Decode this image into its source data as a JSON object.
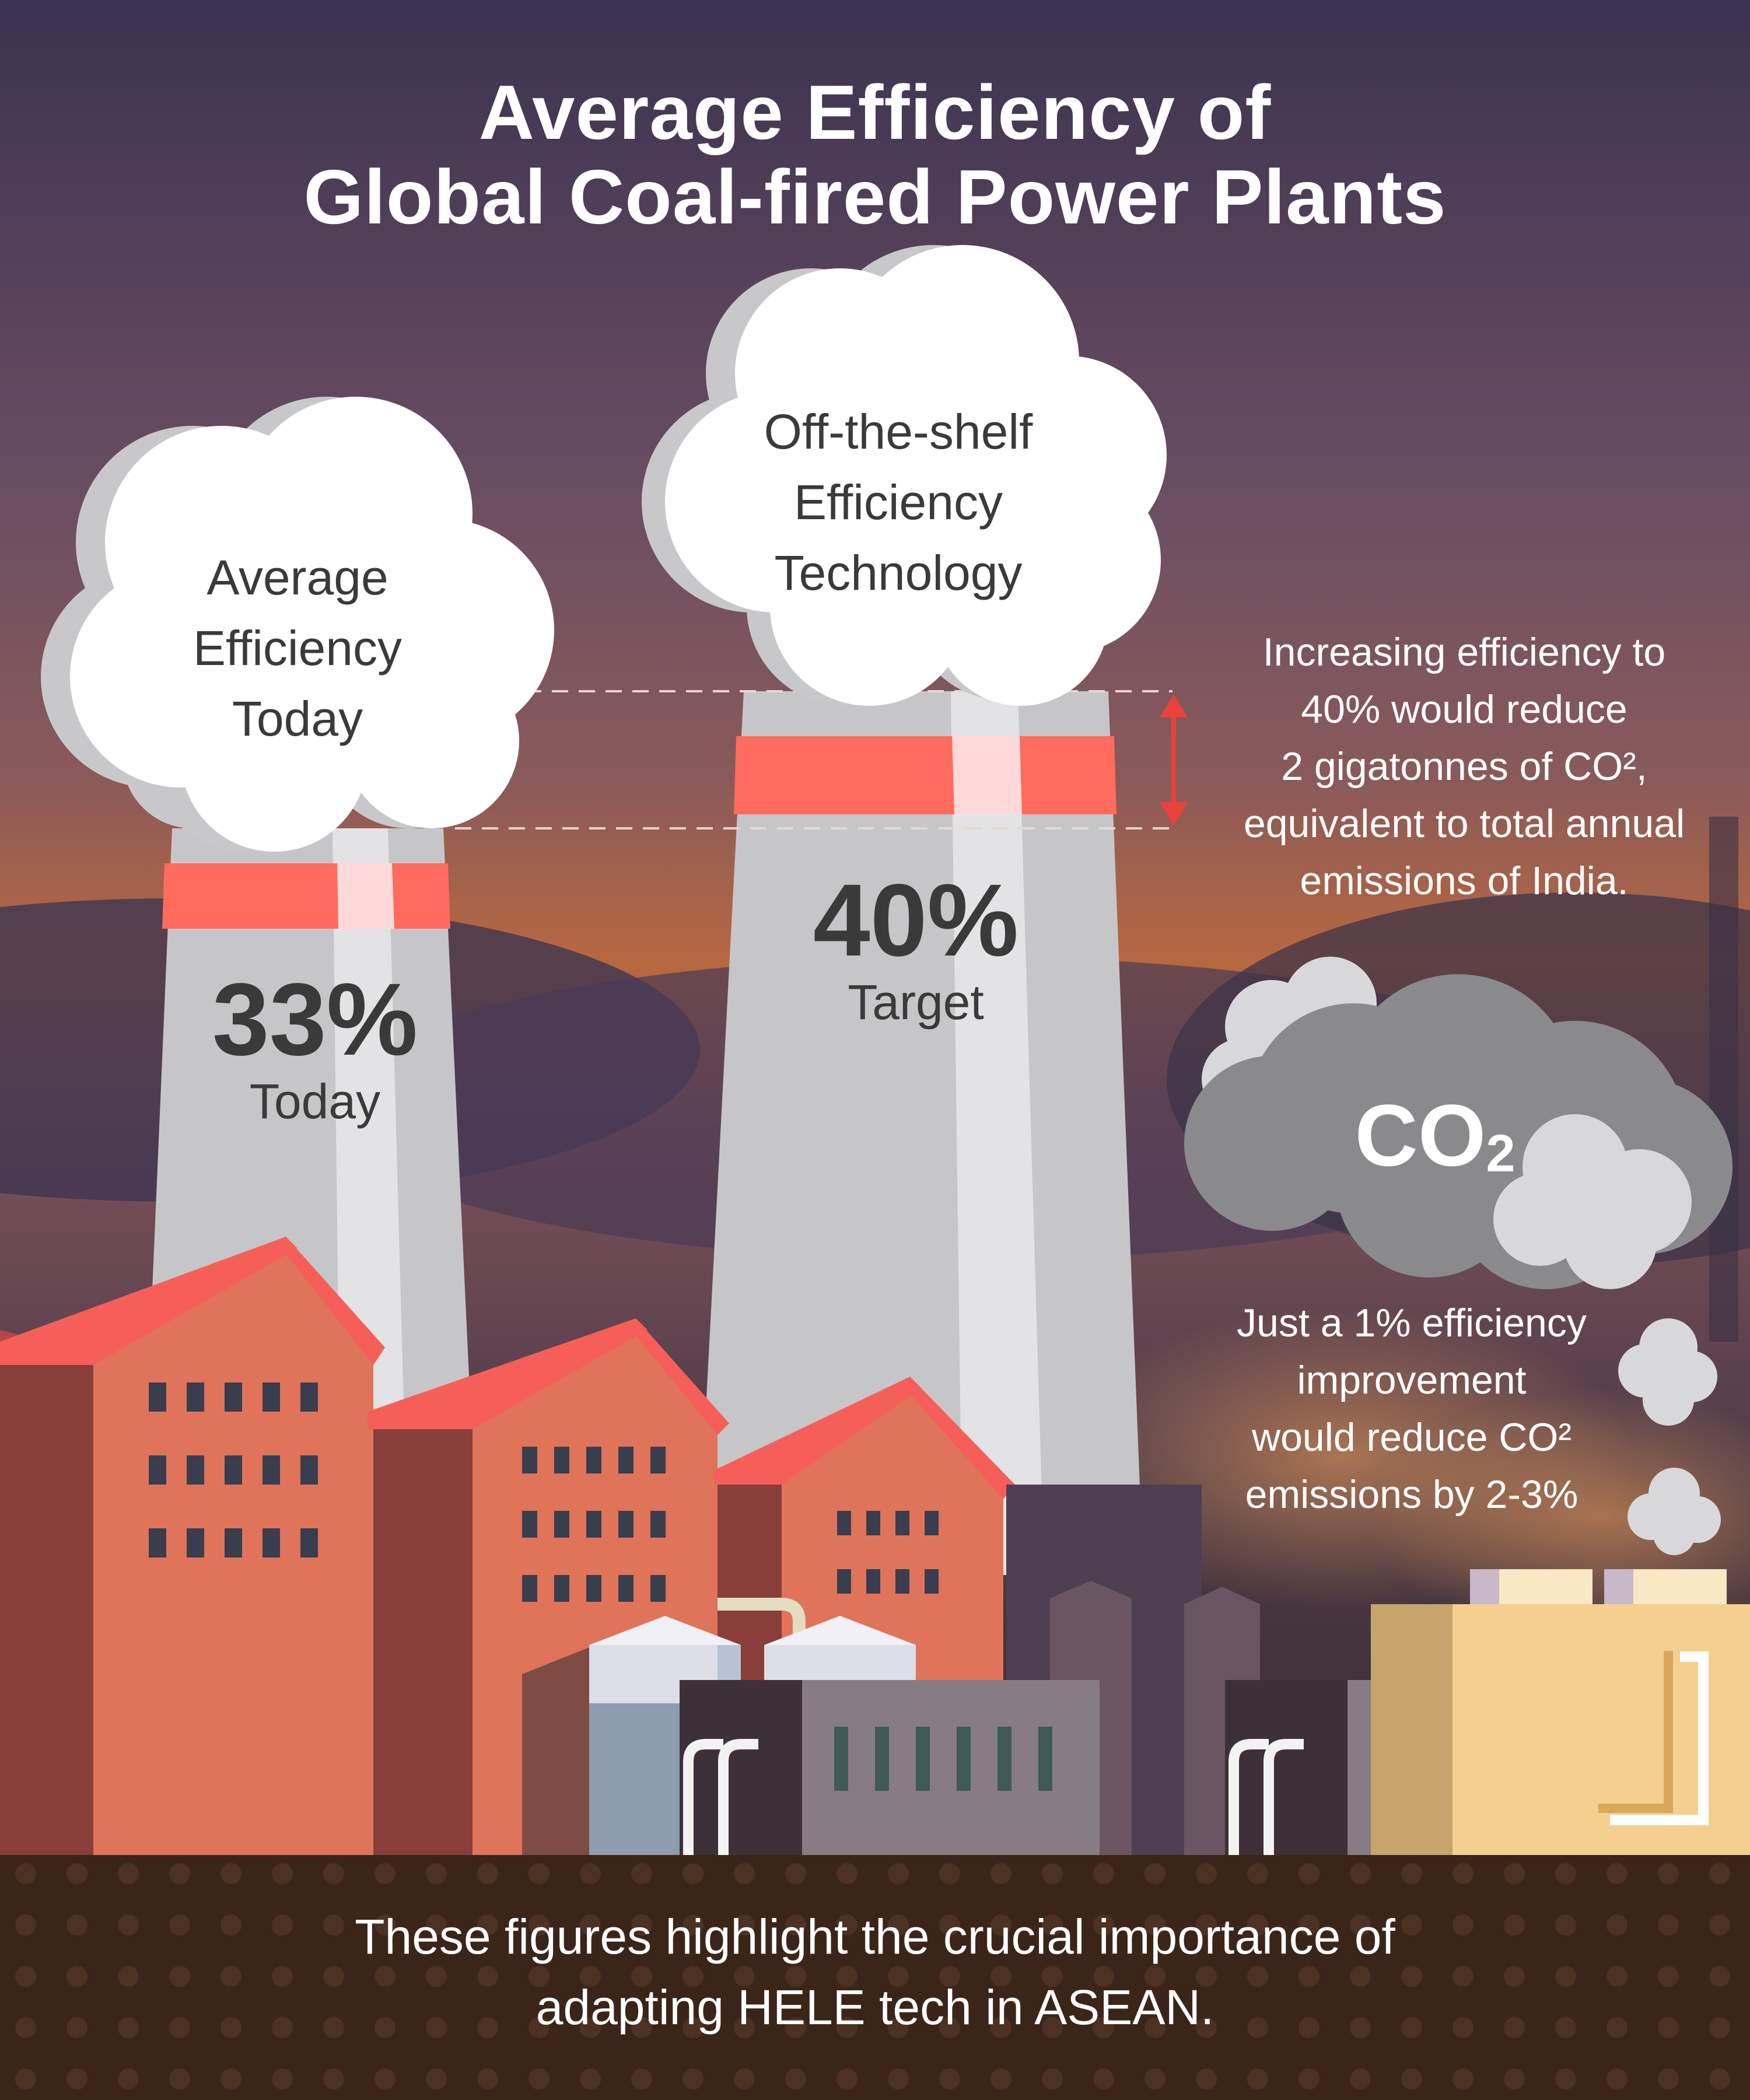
{
  "title": {
    "line1": "Average Efficiency of",
    "line2": "Global Coal-fired Power Plants"
  },
  "left_tower": {
    "cloud_lines": [
      "Average",
      "Efficiency",
      "Today"
    ],
    "value": "33%",
    "label": "Today"
  },
  "right_tower": {
    "cloud_lines": [
      "Off-the-shelf",
      "Efficiency",
      "Technology"
    ],
    "value": "40%",
    "label": "Target"
  },
  "note_top": {
    "lines": [
      "Increasing efficiency to",
      "40% would reduce",
      "2 gigatonnes of CO²,",
      "equivalent to total annual",
      "emissions of India."
    ]
  },
  "co2_cloud": {
    "text": "CO",
    "subscript": "2"
  },
  "note_bottom": {
    "lines": [
      "Just a 1% efficiency",
      "improvement",
      "would reduce CO²",
      "emissions by 2-3%"
    ]
  },
  "footer": {
    "line1": "These figures highlight the crucial importance of",
    "line2": "adapting HELE tech in ASEAN."
  },
  "colors": {
    "sky_top": "#3f3351",
    "sky_mid": "#7a5560",
    "sky_horizon": "#c2693e",
    "tower": "#c9c9cb",
    "tower_band": "#ff6b5d",
    "roof": "#f65f59",
    "brick": "#e0765c",
    "brick_dark": "#8a3e3a",
    "ground": "#3b2519",
    "cloud": "#ffffff",
    "co2_cloud": "#8a8a8c"
  }
}
